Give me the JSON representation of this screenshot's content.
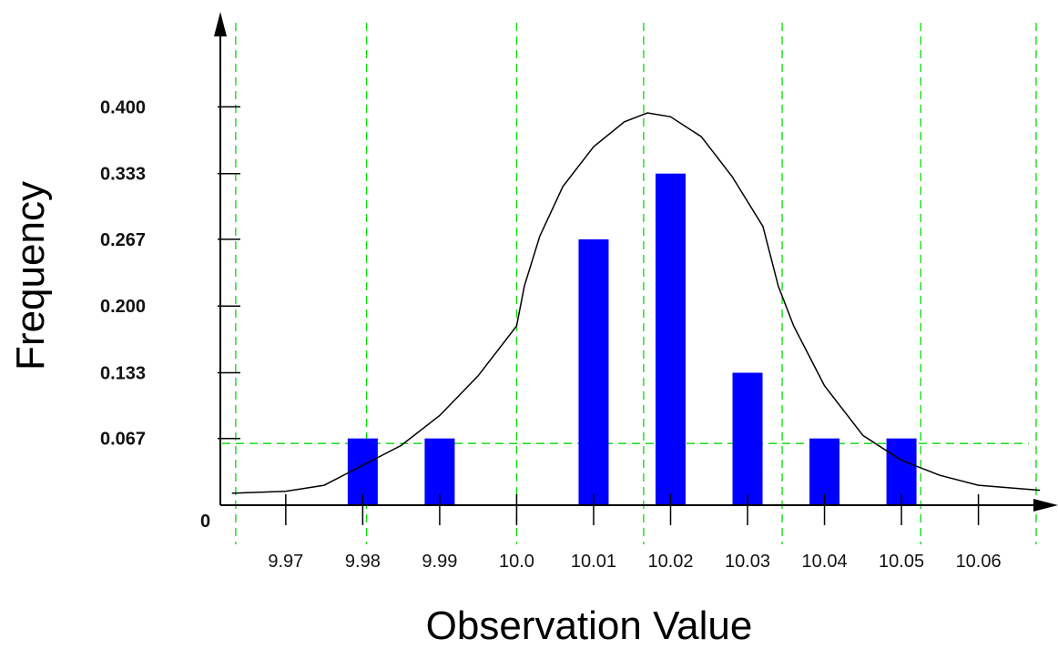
{
  "chart_data": {
    "type": "bar",
    "xlabel": "Observation Value",
    "ylabel": "Frequency",
    "x_tick_labels": [
      "9.97",
      "9.98",
      "9.99",
      "10.0",
      "10.01",
      "10.02",
      "10.03",
      "10.04",
      "10.05",
      "10.06"
    ],
    "x_ticks": [
      9.97,
      9.98,
      9.99,
      10.0,
      10.01,
      10.02,
      10.03,
      10.04,
      10.05,
      10.06
    ],
    "y_tick_labels": [
      "0",
      "0.067",
      "0.133",
      "0.200",
      "0.267",
      "0.333",
      "0.400"
    ],
    "y_ticks": [
      0,
      0.067,
      0.133,
      0.2,
      0.267,
      0.333,
      0.4
    ],
    "xlim": [
      9.9615,
      10.0675
    ],
    "ylim": [
      0,
      0.5
    ],
    "bars": [
      {
        "x": 9.98,
        "value": 0.067
      },
      {
        "x": 9.99,
        "value": 0.067
      },
      {
        "x": 10.01,
        "value": 0.267
      },
      {
        "x": 10.02,
        "value": 0.333
      },
      {
        "x": 10.03,
        "value": 0.133
      },
      {
        "x": 10.04,
        "value": 0.067
      },
      {
        "x": 10.05,
        "value": 0.067
      }
    ],
    "curve": [
      [
        9.963,
        0.012
      ],
      [
        9.97,
        0.014
      ],
      [
        9.975,
        0.02
      ],
      [
        9.98,
        0.04
      ],
      [
        9.985,
        0.06
      ],
      [
        9.99,
        0.09
      ],
      [
        9.995,
        0.13
      ],
      [
        10.0,
        0.18
      ],
      [
        10.001,
        0.22
      ],
      [
        10.003,
        0.27
      ],
      [
        10.006,
        0.32
      ],
      [
        10.01,
        0.36
      ],
      [
        10.014,
        0.385
      ],
      [
        10.017,
        0.394
      ],
      [
        10.02,
        0.39
      ],
      [
        10.024,
        0.37
      ],
      [
        10.028,
        0.33
      ],
      [
        10.032,
        0.28
      ],
      [
        10.034,
        0.22
      ],
      [
        10.036,
        0.18
      ],
      [
        10.04,
        0.12
      ],
      [
        10.045,
        0.07
      ],
      [
        10.05,
        0.045
      ],
      [
        10.055,
        0.03
      ],
      [
        10.06,
        0.02
      ],
      [
        10.068,
        0.015
      ]
    ],
    "reference_lines": {
      "vertical": [
        9.9635,
        9.9805,
        10.0,
        10.0165,
        10.0345,
        10.0525,
        10.0675
      ],
      "horizontal": [
        0.062
      ]
    },
    "colors": {
      "bar": "#0000ff",
      "curve": "#000000",
      "reference": "#00dd00",
      "axis": "#000000"
    },
    "grid": false,
    "legend": "none"
  }
}
